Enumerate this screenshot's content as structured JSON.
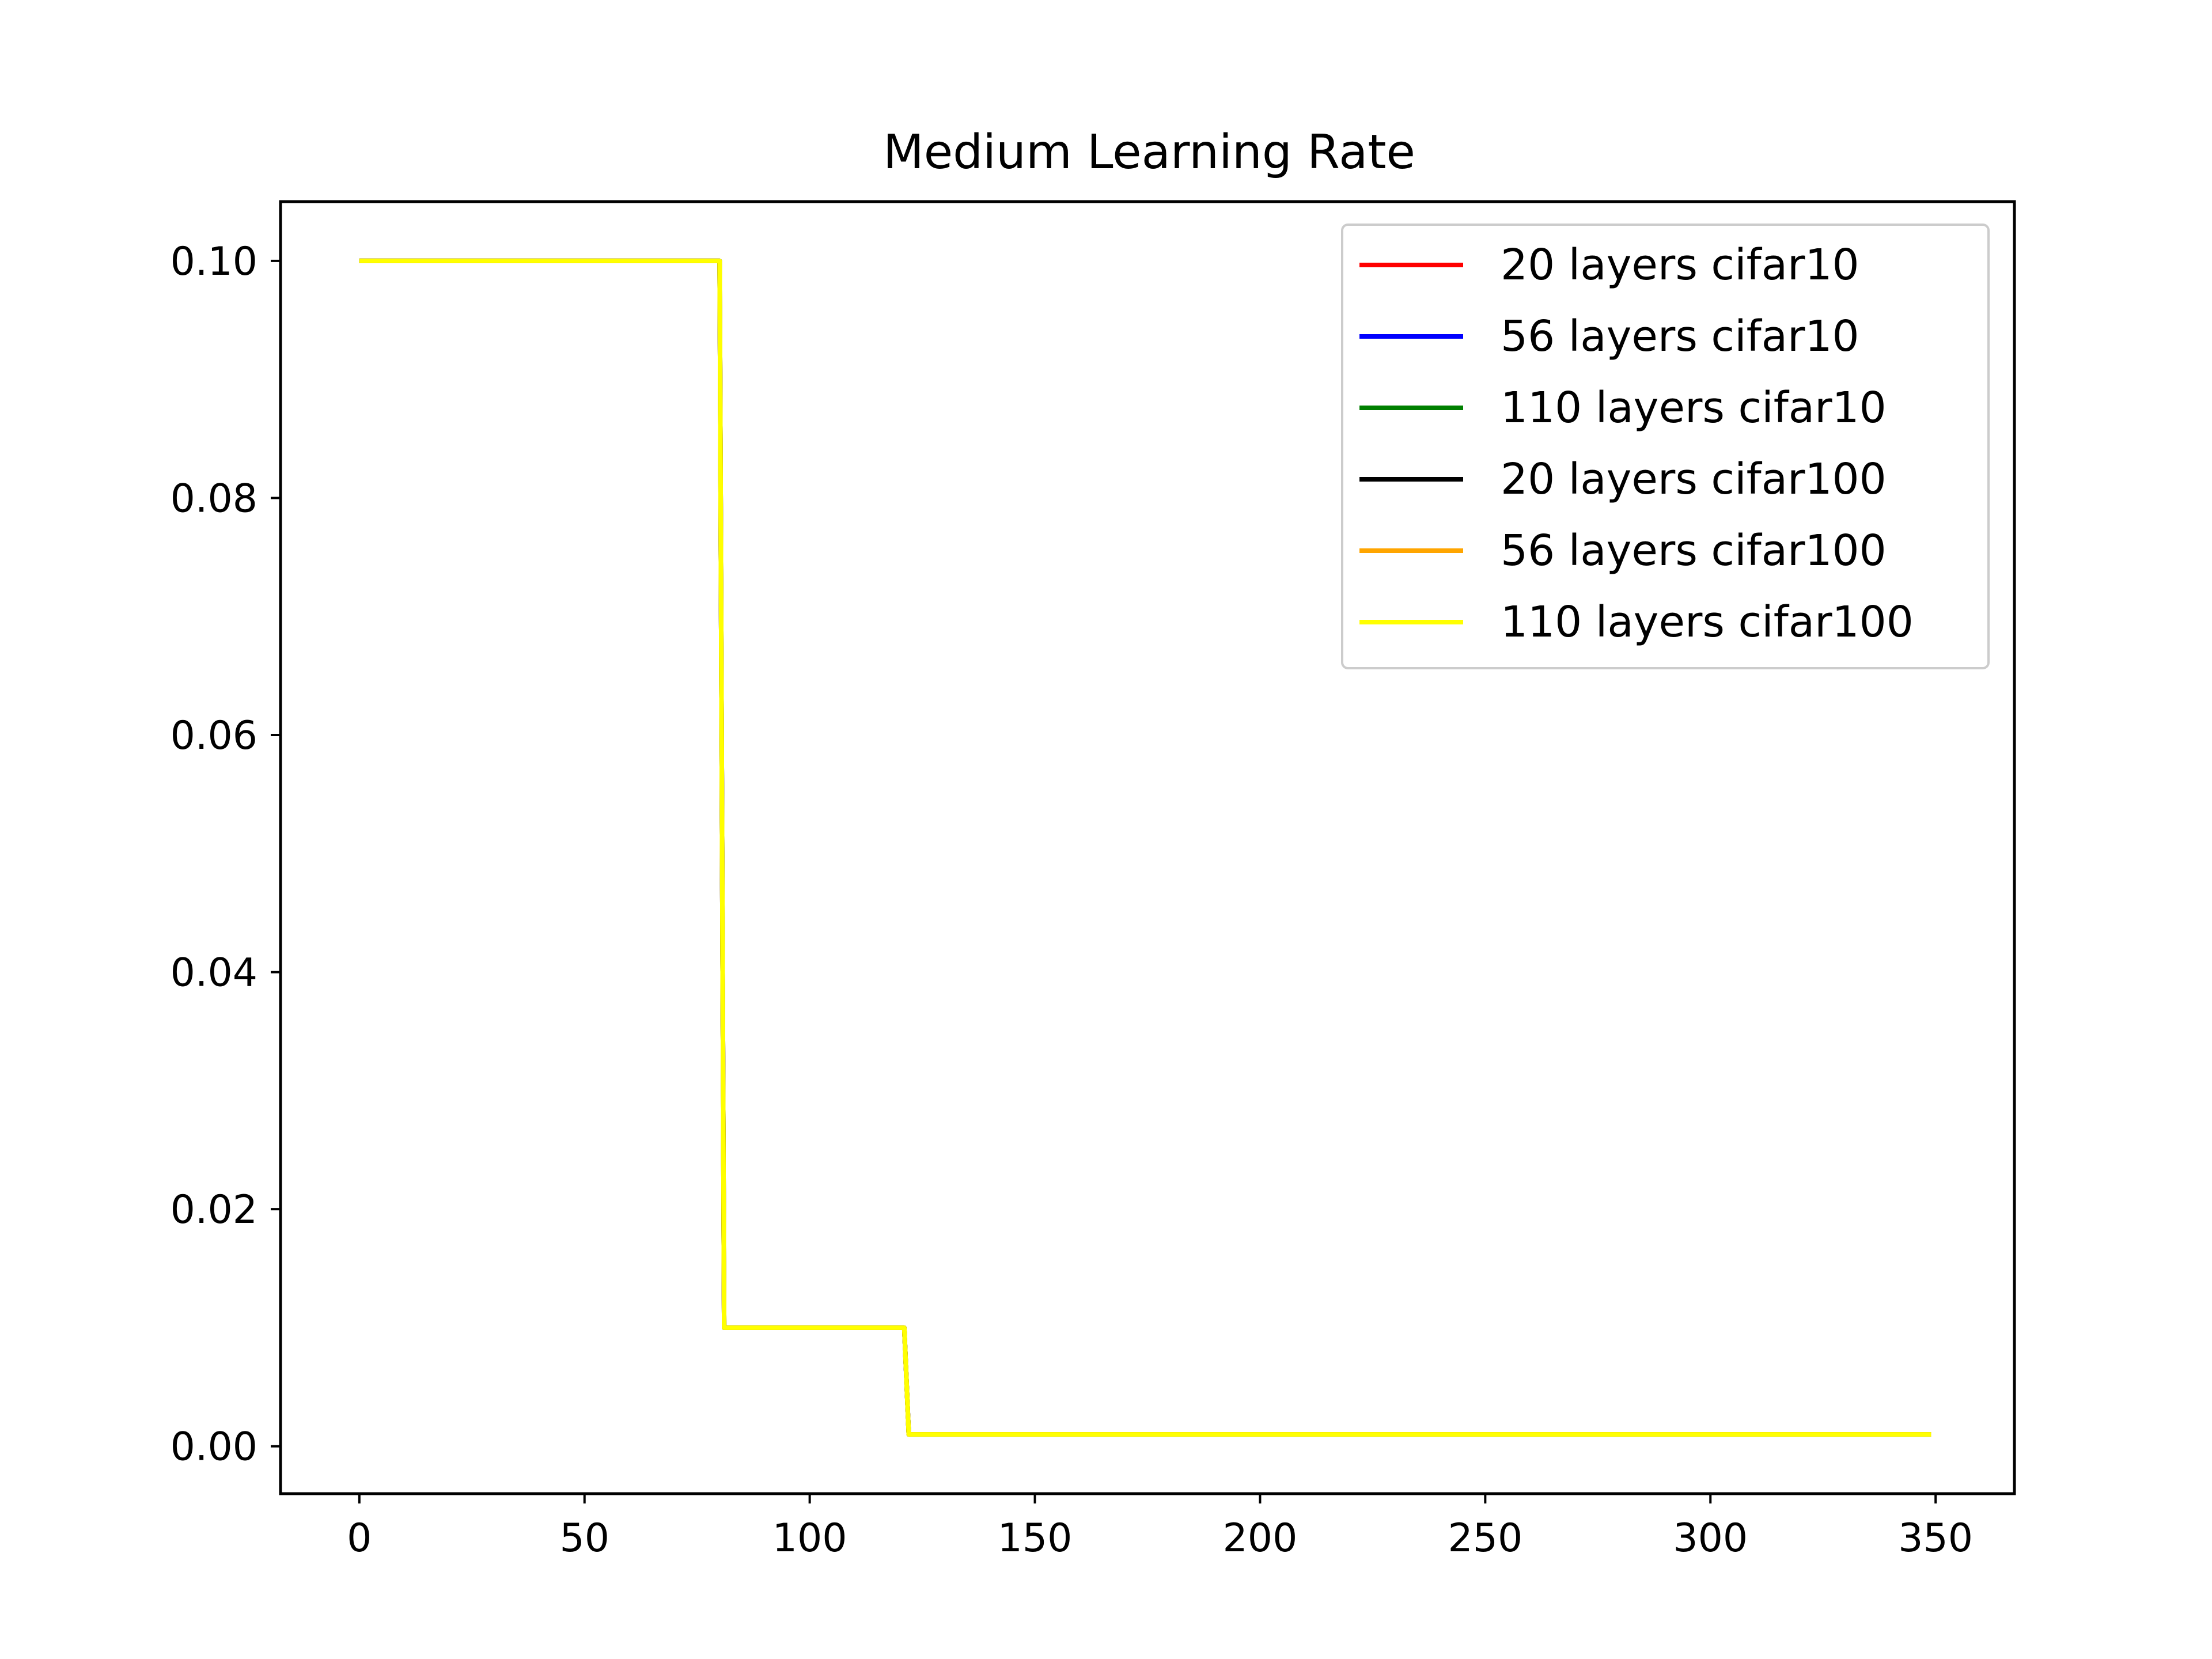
{
  "chart_data": {
    "type": "line",
    "title": "Medium Learning Rate",
    "xlabel": "",
    "ylabel": "",
    "xlim": [
      -17.5,
      367.5
    ],
    "ylim": [
      -0.004,
      0.105
    ],
    "xticks": [
      0,
      50,
      100,
      150,
      200,
      250,
      300,
      350
    ],
    "xtick_labels": [
      "0",
      "50",
      "100",
      "150",
      "200",
      "250",
      "300",
      "350"
    ],
    "yticks": [
      0.0,
      0.02,
      0.04,
      0.06,
      0.08,
      0.1
    ],
    "ytick_labels": [
      "0.00",
      "0.02",
      "0.04",
      "0.06",
      "0.08",
      "0.10"
    ],
    "grid": false,
    "legend_position": "top-right",
    "series": [
      {
        "name": "20 layers cifar10",
        "color": "#ff0000",
        "x": [
          0,
          80,
          81,
          121,
          122,
          349
        ],
        "y": [
          0.1,
          0.1,
          0.01,
          0.01,
          0.001,
          0.001
        ]
      },
      {
        "name": "56 layers cifar10",
        "color": "#0000ff",
        "x": [
          0,
          80,
          81,
          121,
          122,
          349
        ],
        "y": [
          0.1,
          0.1,
          0.01,
          0.01,
          0.001,
          0.001
        ]
      },
      {
        "name": "110 layers cifar10",
        "color": "#008000",
        "x": [
          0,
          80,
          81,
          121,
          122,
          349
        ],
        "y": [
          0.1,
          0.1,
          0.01,
          0.01,
          0.001,
          0.001
        ]
      },
      {
        "name": "20 layers cifar100",
        "color": "#000000",
        "x": [
          0,
          80,
          81,
          121,
          122,
          349
        ],
        "y": [
          0.1,
          0.1,
          0.01,
          0.01,
          0.001,
          0.001
        ]
      },
      {
        "name": "56 layers cifar100",
        "color": "#ffa500",
        "x": [
          0,
          80,
          81,
          121,
          122,
          349
        ],
        "y": [
          0.1,
          0.1,
          0.01,
          0.01,
          0.001,
          0.001
        ]
      },
      {
        "name": "110 layers cifar100",
        "color": "#ffff00",
        "x": [
          0,
          80,
          81,
          121,
          122,
          349
        ],
        "y": [
          0.1,
          0.1,
          0.01,
          0.01,
          0.001,
          0.001
        ]
      }
    ]
  }
}
